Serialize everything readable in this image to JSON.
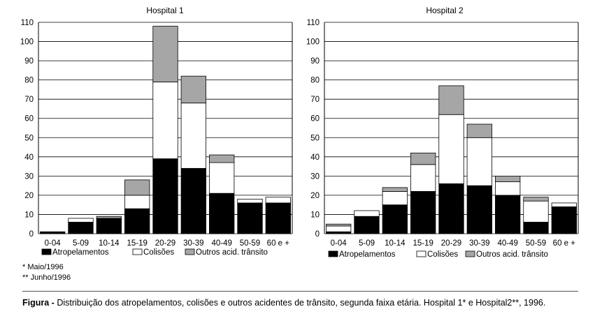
{
  "chart_data": [
    {
      "type": "bar",
      "stacked": true,
      "title": "Hospital 1",
      "categories": [
        "0-04",
        "5-09",
        "10-14",
        "15-19",
        "20-29",
        "30-39",
        "40-49",
        "50-59",
        "60 e +"
      ],
      "series": [
        {
          "name": "Atropelamentos",
          "values": [
            1,
            6,
            8,
            13,
            39,
            34,
            21,
            16,
            16
          ]
        },
        {
          "name": "Colisões",
          "values": [
            0,
            2,
            0,
            7,
            40,
            34,
            16,
            2,
            3
          ]
        },
        {
          "name": "Outros acid. trânsito",
          "values": [
            0,
            0,
            1,
            8,
            29,
            14,
            4,
            0,
            0
          ]
        }
      ],
      "ylim": [
        0,
        110
      ],
      "yticks": [
        0,
        10,
        20,
        30,
        40,
        50,
        60,
        70,
        80,
        90,
        100,
        110
      ],
      "grid": true,
      "legend": "bottom"
    },
    {
      "type": "bar",
      "stacked": true,
      "title": "Hospital 2",
      "categories": [
        "0-04",
        "5-09",
        "10-14",
        "15-19",
        "20-29",
        "30-39",
        "40-49",
        "50-59",
        "60 e +"
      ],
      "series": [
        {
          "name": "Atropelamentos",
          "values": [
            1,
            9,
            15,
            22,
            26,
            25,
            20,
            6,
            14
          ]
        },
        {
          "name": "Colisões",
          "values": [
            3,
            3,
            7,
            14,
            36,
            25,
            7,
            11,
            2
          ]
        },
        {
          "name": "Outros acid. trânsito",
          "values": [
            1,
            0,
            2,
            6,
            15,
            7,
            3,
            2,
            0
          ]
        }
      ],
      "ylim": [
        0,
        110
      ],
      "yticks": [
        0,
        10,
        20,
        30,
        40,
        50,
        60,
        70,
        80,
        90,
        100,
        110
      ],
      "grid": true,
      "legend": "bottom"
    }
  ],
  "colors": {
    "Atropelamentos": "#000000",
    "Colisões": "#ffffff",
    "Outros acid. trânsito": "#a6a6a6"
  },
  "notes": [
    "* Maio/1996",
    "** Junho/1996"
  ],
  "caption": {
    "label": "Figura -",
    "text": " Distribuição dos atropelamentos, colisões e outros acidentes de trânsito, segunda faixa etária. Hospital 1* e Hospital2**, 1996."
  }
}
